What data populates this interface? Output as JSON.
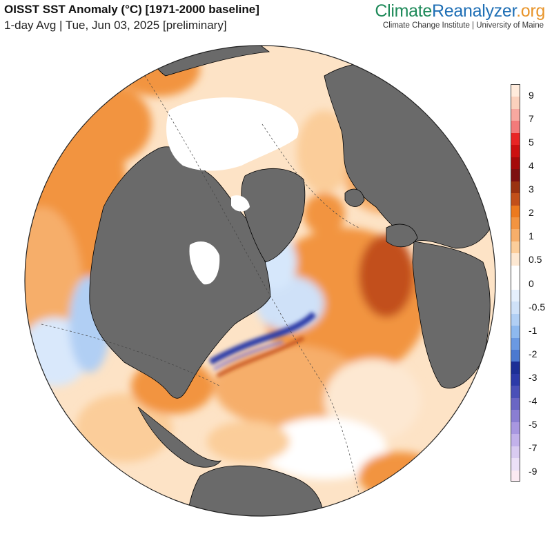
{
  "header": {
    "title": "OISST SST Anomaly (°C) [1971-2000 baseline]",
    "subtitle": "1-day Avg | Tue, Jun 03, 2025 [preliminary]",
    "brand_part1": "Climate",
    "brand_part2": "Reanalyzer",
    "brand_part3": ".org",
    "affiliation": "Climate Change Institute | University of Maine"
  },
  "colors": {
    "land": "#6a6a6a",
    "ice": "#ffffff",
    "warm_1": "#fbcd9a",
    "warm_2": "#f5a45b",
    "warm_3": "#ef7f26",
    "deep_warm": "#c8561a",
    "cold_1": "#d6e7fb",
    "cold_2": "#a9cdf4",
    "cold_strong": "#2b3fb0",
    "border": "#000000"
  },
  "legend": {
    "labels": [
      "9",
      "7",
      "5",
      "4",
      "3",
      "2",
      "1",
      "0.5",
      "0",
      "-0.5",
      "-1",
      "-2",
      "-3",
      "-4",
      "-5",
      "-7",
      "-9"
    ],
    "segments": [
      {
        "color": "#ffebdc"
      },
      {
        "color": "#fbd1bd"
      },
      {
        "color": "#f7a8a0"
      },
      {
        "color": "#f27a7a"
      },
      {
        "color": "#e82525"
      },
      {
        "color": "#cc1010"
      },
      {
        "color": "#a50a0a"
      },
      {
        "color": "#7d1010"
      },
      {
        "color": "#9a3210"
      },
      {
        "color": "#c2501a"
      },
      {
        "color": "#ec7a1f"
      },
      {
        "color": "#f29441"
      },
      {
        "color": "#f6ae6a"
      },
      {
        "color": "#fbcd9a"
      },
      {
        "color": "#fde8d2"
      },
      {
        "color": "#ffffff"
      },
      {
        "color": "#ffffff"
      },
      {
        "color": "#e5effc"
      },
      {
        "color": "#cfe1f8"
      },
      {
        "color": "#b1cff4"
      },
      {
        "color": "#8eb9ef"
      },
      {
        "color": "#6a99e2"
      },
      {
        "color": "#4b79d0"
      },
      {
        "color": "#1c2f96"
      },
      {
        "color": "#2c3aa8"
      },
      {
        "color": "#4a50b8"
      },
      {
        "color": "#6a66c4"
      },
      {
        "color": "#8a7ed2"
      },
      {
        "color": "#a897e0"
      },
      {
        "color": "#c2b1ea"
      },
      {
        "color": "#d9cbf1"
      },
      {
        "color": "#ebe0f7"
      },
      {
        "color": "#fbeaf2"
      }
    ]
  }
}
